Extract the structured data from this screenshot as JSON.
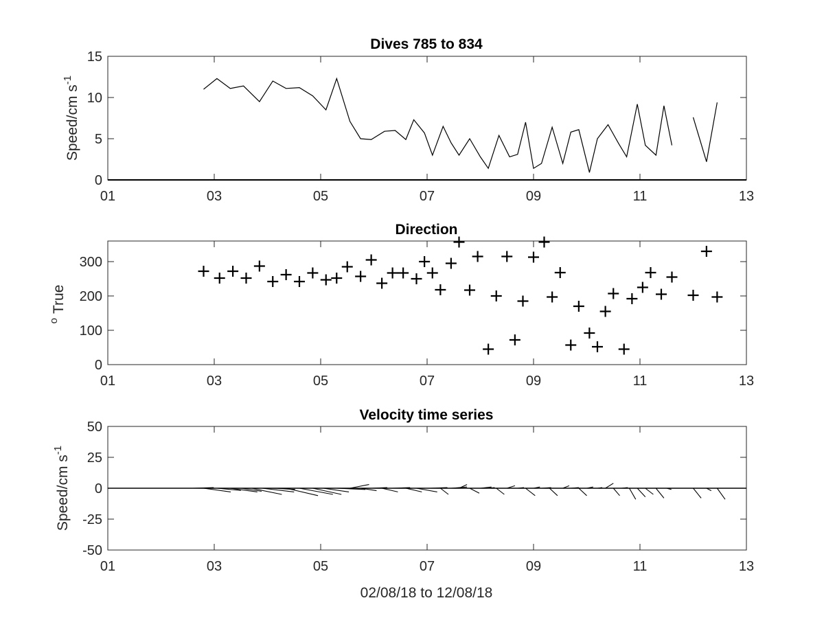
{
  "figure": {
    "xlabel": "02/08/18 to 12/08/18",
    "x_tick_labels": [
      "01",
      "03",
      "05",
      "07",
      "09",
      "11",
      "13"
    ],
    "line_color": "#000000",
    "axes_color": "#262626",
    "background": "#ffffff"
  },
  "chart_data": [
    {
      "type": "line",
      "title": "Dives 785 to 834",
      "xlabel": "",
      "ylabel": "Speed/cm s",
      "ylabel_superscript": "-1",
      "xlim": [
        1,
        13
      ],
      "ylim": [
        0,
        15
      ],
      "y_tick_labels": [
        "0",
        "5",
        "10",
        "15"
      ],
      "y_ticks": [
        0,
        5,
        10,
        15
      ],
      "grid": false,
      "series": [
        {
          "segments": [
            [
              [
                2.8,
                11.0
              ],
              [
                3.05,
                12.3
              ],
              [
                3.3,
                11.1
              ],
              [
                3.55,
                11.4
              ],
              [
                3.85,
                9.5
              ],
              [
                4.1,
                12.0
              ],
              [
                4.35,
                11.1
              ],
              [
                4.6,
                11.2
              ],
              [
                4.85,
                10.2
              ],
              [
                5.1,
                8.5
              ],
              [
                5.3,
                12.3
              ],
              [
                5.55,
                7.1
              ],
              [
                5.75,
                5.0
              ],
              [
                5.95,
                4.9
              ],
              [
                6.2,
                5.9
              ],
              [
                6.4,
                6.0
              ],
              [
                6.6,
                4.9
              ],
              [
                6.75,
                7.3
              ],
              [
                6.95,
                5.7
              ],
              [
                7.1,
                3.0
              ],
              [
                7.3,
                6.5
              ],
              [
                7.45,
                4.5
              ],
              [
                7.6,
                3.0
              ],
              [
                7.8,
                5.0
              ],
              [
                8.0,
                2.8
              ],
              [
                8.15,
                1.4
              ],
              [
                8.35,
                5.4
              ],
              [
                8.55,
                2.8
              ],
              [
                8.7,
                3.1
              ],
              [
                8.85,
                7.0
              ],
              [
                9.0,
                1.4
              ],
              [
                9.15,
                2.0
              ],
              [
                9.35,
                6.4
              ],
              [
                9.55,
                2.0
              ],
              [
                9.7,
                5.8
              ],
              [
                9.85,
                6.1
              ],
              [
                10.05,
                0.9
              ],
              [
                10.2,
                5.0
              ],
              [
                10.4,
                6.7
              ],
              [
                10.6,
                4.4
              ],
              [
                10.75,
                2.8
              ],
              [
                10.95,
                9.2
              ],
              [
                11.1,
                4.2
              ],
              [
                11.3,
                3.0
              ],
              [
                11.45,
                9.0
              ],
              [
                11.6,
                4.2
              ]
            ],
            [
              [
                12.0,
                7.6
              ],
              [
                12.25,
                2.2
              ],
              [
                12.45,
                9.4
              ]
            ]
          ]
        }
      ]
    },
    {
      "type": "scatter",
      "title": "Direction",
      "xlabel": "",
      "ylabel": "True",
      "ylabel_prefix": "o",
      "xlim": [
        1,
        13
      ],
      "ylim": [
        0,
        360
      ],
      "y_tick_labels": [
        "0",
        "100",
        "200",
        "300"
      ],
      "y_ticks": [
        0,
        100,
        200,
        300
      ],
      "marker": "+",
      "grid": false,
      "points": [
        [
          2.8,
          272
        ],
        [
          3.1,
          252
        ],
        [
          3.35,
          272
        ],
        [
          3.6,
          252
        ],
        [
          3.85,
          287
        ],
        [
          4.1,
          242
        ],
        [
          4.35,
          262
        ],
        [
          4.6,
          242
        ],
        [
          4.85,
          267
        ],
        [
          5.1,
          247
        ],
        [
          5.3,
          252
        ],
        [
          5.5,
          285
        ],
        [
          5.75,
          257
        ],
        [
          5.95,
          305
        ],
        [
          6.15,
          237
        ],
        [
          6.35,
          267
        ],
        [
          6.55,
          267
        ],
        [
          6.8,
          250
        ],
        [
          6.95,
          300
        ],
        [
          7.1,
          267
        ],
        [
          7.25,
          218
        ],
        [
          7.45,
          295
        ],
        [
          7.6,
          357
        ],
        [
          7.8,
          217
        ],
        [
          7.95,
          315
        ],
        [
          8.15,
          45
        ],
        [
          8.3,
          200
        ],
        [
          8.5,
          315
        ],
        [
          8.65,
          72
        ],
        [
          8.8,
          185
        ],
        [
          9.0,
          313
        ],
        [
          9.2,
          357
        ],
        [
          9.35,
          197
        ],
        [
          9.5,
          268
        ],
        [
          9.7,
          57
        ],
        [
          9.85,
          170
        ],
        [
          10.05,
          92
        ],
        [
          10.2,
          52
        ],
        [
          10.35,
          155
        ],
        [
          10.5,
          207
        ],
        [
          10.7,
          45
        ],
        [
          10.85,
          192
        ],
        [
          11.05,
          225
        ],
        [
          11.2,
          268
        ],
        [
          11.4,
          205
        ],
        [
          11.6,
          255
        ],
        [
          12.0,
          202
        ],
        [
          12.25,
          330
        ],
        [
          12.45,
          197
        ]
      ]
    },
    {
      "type": "quiver",
      "title": "Velocity time series",
      "xlabel": "02/08/18 to 12/08/18",
      "ylabel": "Speed/cm s",
      "ylabel_superscript": "-1",
      "xlim": [
        1,
        13
      ],
      "ylim": [
        -50,
        50
      ],
      "y_tick_labels": [
        "-50",
        "-25",
        "0",
        "25",
        "50"
      ],
      "y_ticks": [
        -50,
        -25,
        0,
        25,
        50
      ],
      "baseline": 0,
      "grid": false,
      "vectors": [
        [
          2.6,
          1.3,
          0.5
        ],
        [
          2.8,
          1.7,
          -3
        ],
        [
          3.05,
          1.5,
          -1.8
        ],
        [
          3.3,
          1.7,
          -3
        ],
        [
          3.5,
          1.3,
          -2.5
        ],
        [
          3.7,
          1.9,
          -5
        ],
        [
          3.9,
          2.0,
          -3
        ],
        [
          4.1,
          1.4,
          -1
        ],
        [
          4.35,
          2.0,
          -6
        ],
        [
          4.6,
          2.1,
          -5
        ],
        [
          4.85,
          1.8,
          -5
        ],
        [
          5.05,
          1.6,
          -3
        ],
        [
          5.3,
          1.8,
          -1
        ],
        [
          5.55,
          1.2,
          3
        ],
        [
          5.75,
          1.0,
          -2
        ],
        [
          5.95,
          1.0,
          0.5
        ],
        [
          6.15,
          1.0,
          -3
        ],
        [
          6.35,
          1.1,
          0.5
        ],
        [
          6.6,
          1.0,
          -3
        ],
        [
          6.8,
          1.3,
          -3
        ],
        [
          7.05,
          1.1,
          0.5
        ],
        [
          7.25,
          0.5,
          -5
        ],
        [
          7.45,
          1.0,
          1
        ],
        [
          7.6,
          0.5,
          3
        ],
        [
          7.8,
          0.6,
          -4
        ],
        [
          8.0,
          0.7,
          1
        ],
        [
          8.15,
          0.4,
          0.5
        ],
        [
          8.3,
          0.5,
          -5
        ],
        [
          8.5,
          0.5,
          2
        ],
        [
          8.7,
          0.4,
          0.5
        ],
        [
          8.85,
          0.6,
          -6
        ],
        [
          9.0,
          0.4,
          1
        ],
        [
          9.15,
          0.6,
          0.5
        ],
        [
          9.3,
          0.5,
          -6
        ],
        [
          9.55,
          0.4,
          2
        ],
        [
          9.7,
          0.5,
          0.5
        ],
        [
          9.85,
          0.5,
          -6
        ],
        [
          10.0,
          0.4,
          1
        ],
        [
          10.2,
          0.3,
          0.5
        ],
        [
          10.35,
          0.5,
          4
        ],
        [
          10.5,
          0.4,
          -6
        ],
        [
          10.65,
          0.4,
          0.5
        ],
        [
          10.8,
          0.4,
          -9
        ],
        [
          10.95,
          0.5,
          -7
        ],
        [
          11.1,
          0.5,
          -5
        ],
        [
          11.3,
          0.5,
          -8
        ],
        [
          11.5,
          0.3,
          -1
        ],
        [
          12.0,
          0.5,
          -8
        ],
        [
          12.25,
          0.3,
          -2
        ],
        [
          12.45,
          0.5,
          -9
        ]
      ]
    }
  ]
}
